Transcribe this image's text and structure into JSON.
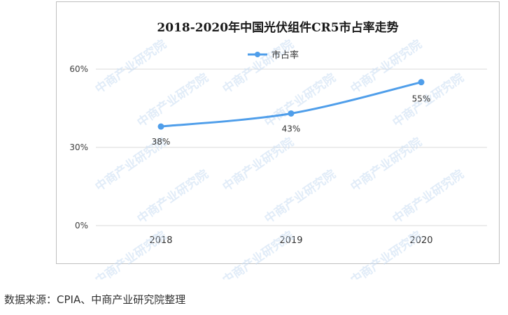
{
  "chart_data": {
    "type": "line",
    "title": "2018-2020年中国光伏组件CR5市占率走势",
    "categories": [
      "2018",
      "2019",
      "2020"
    ],
    "series": [
      {
        "name": "市占率",
        "values": [
          38,
          43,
          55
        ],
        "labels": [
          "38%",
          "43%",
          "55%"
        ]
      }
    ],
    "y_ticks": [
      "0%",
      "30%",
      "60%"
    ],
    "y_tick_values": [
      0,
      30,
      60
    ],
    "ylim": [
      0,
      60
    ],
    "grid": true,
    "legend_position": "top",
    "colors": {
      "series": "#4f9eea",
      "grid": "#d9d9d9",
      "axis_text": "#404040"
    }
  },
  "footer": {
    "source": "数据来源：CPIA、中商产业研究院整理"
  },
  "watermark": {
    "text": "中商产业研究院"
  }
}
